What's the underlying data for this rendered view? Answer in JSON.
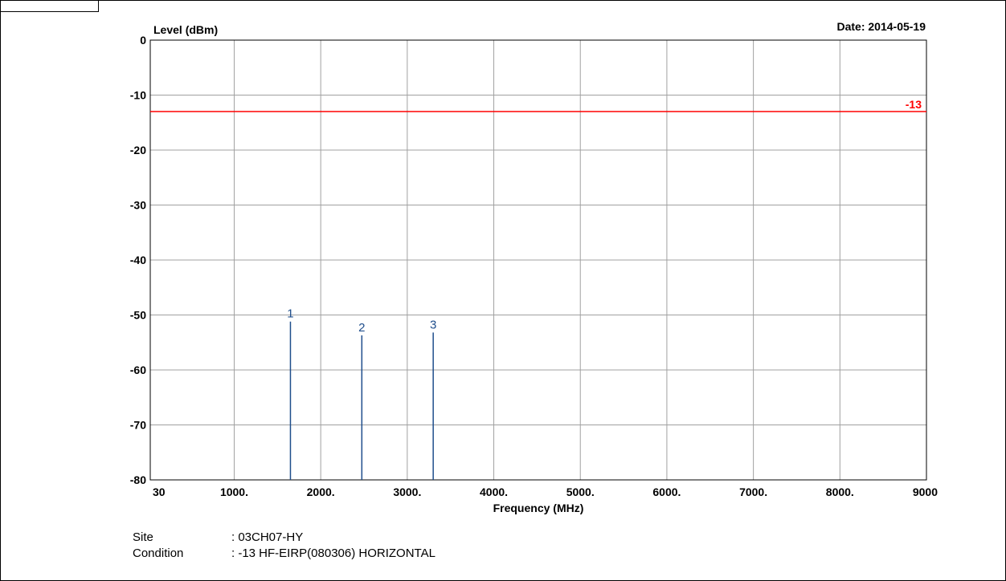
{
  "chart_data": {
    "type": "line",
    "title": "",
    "ylabel": "Level (dBm)",
    "xlabel": "Frequency (MHz)",
    "date_label": "Date: 2014-05-19",
    "xlim": [
      30,
      9000
    ],
    "ylim": [
      -80,
      0
    ],
    "x_tick_values": [
      30,
      1000,
      2000,
      3000,
      4000,
      5000,
      6000,
      7000,
      8000,
      9000
    ],
    "x_tick_labels": [
      "30",
      "1000.",
      "2000.",
      "3000.",
      "4000.",
      "5000.",
      "6000.",
      "7000.",
      "8000.",
      "9000"
    ],
    "y_tick_values": [
      0,
      -10,
      -20,
      -30,
      -40,
      -50,
      -60,
      -70,
      -80
    ],
    "y_tick_labels": [
      "0",
      "-10",
      "-20",
      "-30",
      "-40",
      "-50",
      "-60",
      "-70",
      "-80"
    ],
    "grid": true,
    "limit_line": {
      "value": -13,
      "label": "-13",
      "color": "#ff0000"
    },
    "markers": [
      {
        "label": "1",
        "x": 1650,
        "y": -51.2
      },
      {
        "label": "2",
        "x": 2475,
        "y": -53.7
      },
      {
        "label": "3",
        "x": 3300,
        "y": -53.2
      }
    ],
    "marker_color": "#1f4e8c"
  },
  "info": {
    "site_label": "Site",
    "site_value": ": 03CH07-HY",
    "condition_label": "Condition",
    "condition_value": ": -13 HF-EIRP(080306) HORIZONTAL"
  }
}
